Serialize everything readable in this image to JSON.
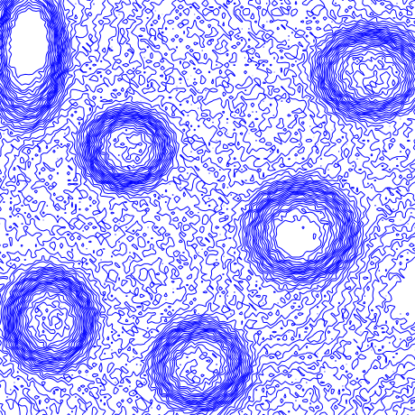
{
  "chart_data": {
    "type": "contour",
    "color": "#0000ff"
  }
}
